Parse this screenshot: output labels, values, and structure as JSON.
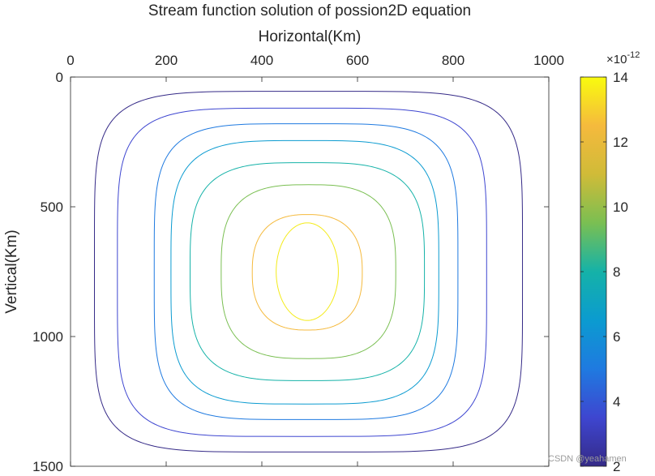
{
  "chart_data": {
    "type": "contour",
    "title": "Stream function solution of possion2D equation",
    "xlabel": "Horizontal(Km)",
    "ylabel": "Vertical(Km)",
    "xlim": [
      0,
      1000
    ],
    "ylim": [
      0,
      1500
    ],
    "y_direction": "reversed",
    "x_axis_location": "top",
    "grid": false,
    "xticks": [
      0,
      200,
      400,
      600,
      800,
      1000
    ],
    "xtick_labels": [
      "0",
      "200",
      "400",
      "600",
      "800",
      "1000"
    ],
    "yticks": [
      0,
      500,
      1000,
      1500
    ],
    "ytick_labels": [
      "0",
      "500",
      "1000",
      "1500"
    ],
    "colorbar": {
      "location": "right",
      "range": [
        2,
        14
      ],
      "ticks": [
        2,
        4,
        6,
        8,
        10,
        12,
        14
      ],
      "tick_labels": [
        "2",
        "4",
        "6",
        "8",
        "10",
        "12",
        "14"
      ],
      "exponent_base": "×10",
      "exponent_power": "-12",
      "colormap": "parula"
    },
    "center": [
      490,
      750
    ],
    "contours": [
      {
        "level": 2.8,
        "x_range": [
          50,
          945
        ],
        "y_range": [
          55,
          1445
        ],
        "color": "#352a87"
      },
      {
        "level": 4.2,
        "x_range": [
          98,
          870
        ],
        "y_range": [
          120,
          1385
        ],
        "color": "#3e46d0"
      },
      {
        "level": 5.6,
        "x_range": [
          175,
          810
        ],
        "y_range": [
          180,
          1320
        ],
        "color": "#1f7ae0"
      },
      {
        "level": 6.8,
        "x_range": [
          210,
          770
        ],
        "y_range": [
          245,
          1260
        ],
        "color": "#0b9bd0"
      },
      {
        "level": 8.0,
        "x_range": [
          250,
          740
        ],
        "y_range": [
          330,
          1170
        ],
        "color": "#15b2a8"
      },
      {
        "level": 9.4,
        "x_range": [
          315,
          680
        ],
        "y_range": [
          415,
          1085
        ],
        "color": "#7abf52"
      },
      {
        "level": 11.8,
        "x_range": [
          380,
          610
        ],
        "y_range": [
          530,
          975
        ],
        "color": "#f5ba3d"
      },
      {
        "level": 13.8,
        "x_range": [
          430,
          560
        ],
        "y_range": [
          562,
          938
        ],
        "color": "#f4eb1a"
      }
    ]
  },
  "watermark": "CSDN @yeahamen"
}
